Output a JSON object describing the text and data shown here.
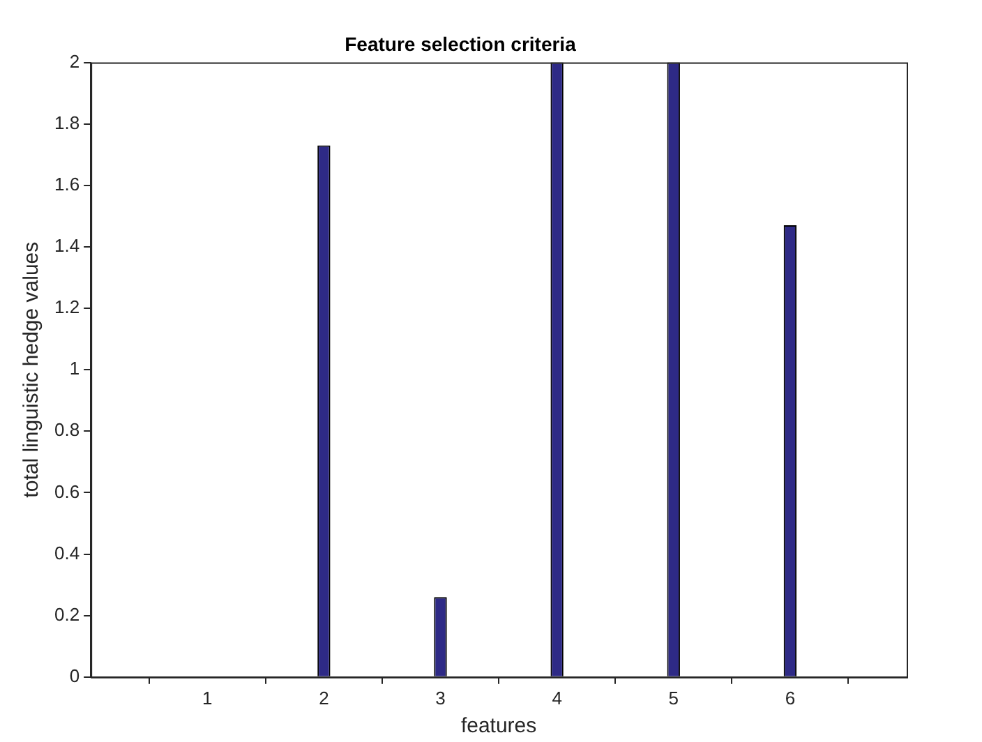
{
  "chart_data": {
    "type": "bar",
    "title": "Feature selection criteria",
    "xlabel": "features",
    "ylabel": "total linguistic hedge values",
    "x": [
      1,
      2,
      3,
      4,
      5,
      6
    ],
    "values": [
      0,
      1.73,
      0.26,
      2,
      2,
      1.47
    ],
    "color": "#2e2a86",
    "xlim": [
      0,
      7
    ],
    "xticks": [
      1,
      2,
      3,
      4,
      5,
      6
    ],
    "ylim": [
      0,
      2
    ],
    "yticks": [
      0,
      0.2,
      0.4,
      0.6,
      0.8,
      1,
      1.2,
      1.4,
      1.6,
      1.8,
      2
    ],
    "grid": false,
    "legend": false
  }
}
